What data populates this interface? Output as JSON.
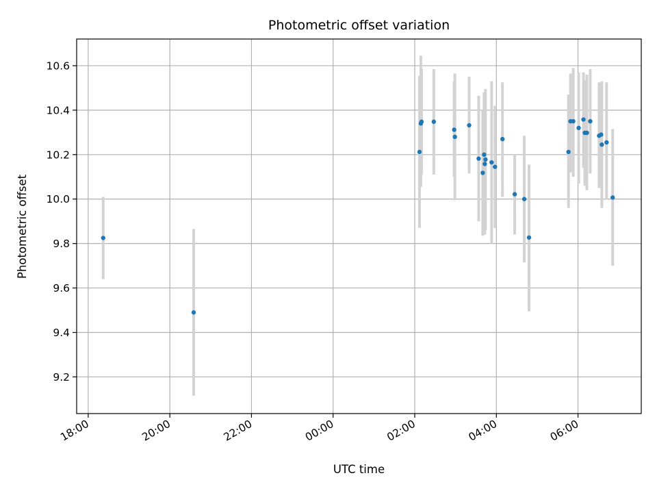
{
  "chart_data": {
    "type": "scatter",
    "title": "Photometric offset variation",
    "xlabel": "UTC time",
    "ylabel": "Photometric offset",
    "grid": true,
    "xlim": [
      "17:43",
      "07:33"
    ],
    "ylim": [
      9.035,
      10.72
    ],
    "xticks": [
      "18:00",
      "20:00",
      "22:00",
      "00:00",
      "02:00",
      "04:00",
      "06:00"
    ],
    "yticks": [
      "9.2",
      "9.4",
      "9.6",
      "9.8",
      "10.0",
      "10.2",
      "10.4",
      "10.6"
    ],
    "colors": {
      "point": "#1f77b4",
      "error_bar": "#d3d3d3",
      "grid": "#b0b0b0"
    },
    "points": [
      {
        "x": "18:22",
        "y": 9.825,
        "lo": 9.64,
        "hi": 10.01
      },
      {
        "x": "20:35",
        "y": 9.49,
        "lo": 9.115,
        "hi": 9.865
      },
      {
        "x": "02:07",
        "y": 10.212,
        "lo": 9.87,
        "hi": 10.555
      },
      {
        "x": "02:09",
        "y": 10.34,
        "lo": 10.055,
        "hi": 10.645
      },
      {
        "x": "02:10",
        "y": 10.348,
        "lo": 10.11,
        "hi": 10.585
      },
      {
        "x": "02:28",
        "y": 10.348,
        "lo": 10.11,
        "hi": 10.585
      },
      {
        "x": "02:58",
        "y": 10.312,
        "lo": 10.1,
        "hi": 10.53
      },
      {
        "x": "02:59",
        "y": 10.28,
        "lo": 9.995,
        "hi": 10.565
      },
      {
        "x": "03:20",
        "y": 10.332,
        "lo": 10.115,
        "hi": 10.55
      },
      {
        "x": "03:34",
        "y": 10.182,
        "lo": 9.9,
        "hi": 10.465
      },
      {
        "x": "03:40",
        "y": 10.118,
        "lo": 9.835,
        "hi": 10.4
      },
      {
        "x": "03:42",
        "y": 10.2,
        "lo": 9.84,
        "hi": 10.48
      },
      {
        "x": "03:43",
        "y": 10.158,
        "lo": 9.84,
        "hi": 10.48
      },
      {
        "x": "03:44",
        "y": 10.178,
        "lo": 9.86,
        "hi": 10.495
      },
      {
        "x": "03:53",
        "y": 10.165,
        "lo": 9.8,
        "hi": 10.53
      },
      {
        "x": "03:58",
        "y": 10.145,
        "lo": 9.87,
        "hi": 10.42
      },
      {
        "x": "04:09",
        "y": 10.27,
        "lo": 10.01,
        "hi": 10.525
      },
      {
        "x": "04:27",
        "y": 10.022,
        "lo": 9.84,
        "hi": 10.2
      },
      {
        "x": "04:41",
        "y": 10.0,
        "lo": 9.715,
        "hi": 10.285
      },
      {
        "x": "04:48",
        "y": 9.827,
        "lo": 9.495,
        "hi": 10.155
      },
      {
        "x": "05:46",
        "y": 10.212,
        "lo": 9.96,
        "hi": 10.47
      },
      {
        "x": "05:49",
        "y": 10.35,
        "lo": 10.12,
        "hi": 10.565
      },
      {
        "x": "05:53",
        "y": 10.35,
        "lo": 10.1,
        "hi": 10.59
      },
      {
        "x": "06:01",
        "y": 10.32,
        "lo": 10.07,
        "hi": 10.57
      },
      {
        "x": "06:08",
        "y": 10.358,
        "lo": 10.14,
        "hi": 10.57
      },
      {
        "x": "06:10",
        "y": 10.298,
        "lo": 10.06,
        "hi": 10.535
      },
      {
        "x": "06:13",
        "y": 10.298,
        "lo": 10.04,
        "hi": 10.56
      },
      {
        "x": "06:18",
        "y": 10.35,
        "lo": 10.115,
        "hi": 10.585
      },
      {
        "x": "06:31",
        "y": 10.285,
        "lo": 10.05,
        "hi": 10.525
      },
      {
        "x": "06:34",
        "y": 10.29,
        "lo": 10.06,
        "hi": 10.52
      },
      {
        "x": "06:35",
        "y": 10.245,
        "lo": 9.96,
        "hi": 10.53
      },
      {
        "x": "06:42",
        "y": 10.255,
        "lo": 10.0,
        "hi": 10.525
      },
      {
        "x": "06:51",
        "y": 10.007,
        "lo": 9.7,
        "hi": 10.315
      }
    ]
  }
}
